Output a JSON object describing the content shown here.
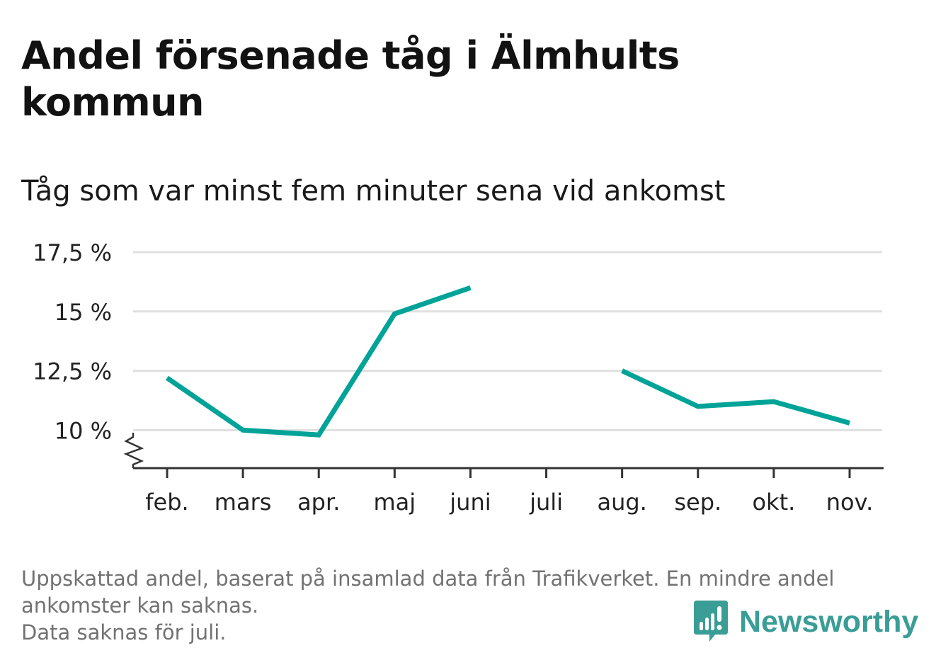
{
  "title": "Andel försenade tåg i Älmhults kommun",
  "subtitle": "Tåg som var minst fem minuter sena vid ankomst",
  "footer": {
    "line1": "Uppskattad andel, baserat på insamlad data från Trafikverket. En mindre andel ankomster kan saknas.",
    "line2": "Data saknas för juli."
  },
  "logo": {
    "text": "Newsworthy",
    "icon": "newsworthy-logo-icon"
  },
  "colors": {
    "line": "#00a397",
    "grid": "#e0e0e0",
    "axis": "#333333",
    "logo": "#3a9d96"
  },
  "chart_data": {
    "type": "line",
    "categories": [
      "feb.",
      "mars",
      "apr.",
      "maj",
      "juni",
      "juli",
      "aug.",
      "sep.",
      "okt.",
      "nov."
    ],
    "series": [
      {
        "values": [
          12.2,
          10.0,
          9.8,
          14.9,
          16.0,
          null,
          12.5,
          11.0,
          11.2,
          10.3
        ]
      }
    ],
    "y_ticks": [
      10,
      12.5,
      15,
      17.5
    ],
    "y_tick_labels": [
      "10 %",
      "12,5 %",
      "15 %",
      "17,5 %"
    ],
    "ylim": [
      8.4,
      17.5
    ],
    "axis_break": true,
    "grid": true,
    "xlabel": "",
    "ylabel": ""
  }
}
